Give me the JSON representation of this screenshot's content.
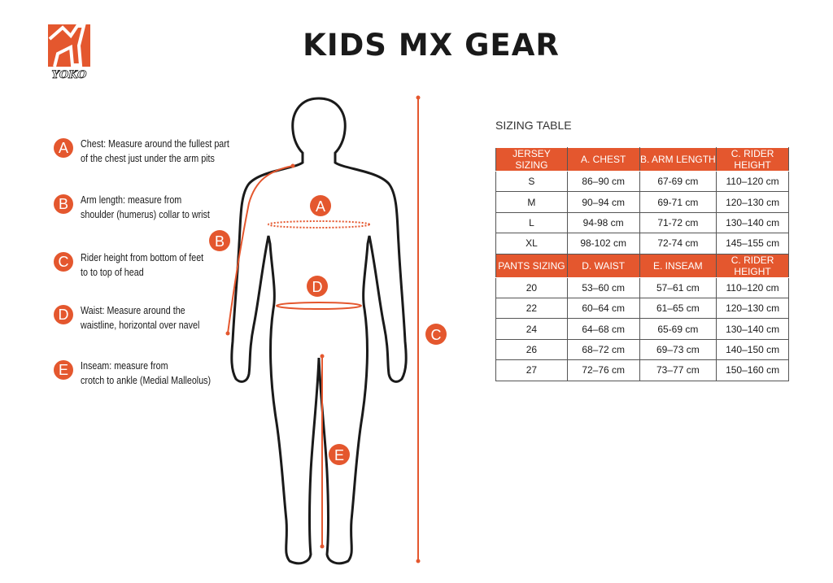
{
  "header": {
    "title": "KIDS MX GEAR",
    "logo_text": "YOKO"
  },
  "colors": {
    "accent": "#e4572e",
    "text": "#1a1a1a"
  },
  "legend": [
    {
      "letter": "A",
      "lines": [
        "Chest: Measure around  the fullest part",
        "of the chest just under the arm pits"
      ]
    },
    {
      "letter": "B",
      "lines": [
        "Arm length: measure from",
        "shoulder (humerus) collar to wrist"
      ]
    },
    {
      "letter": "C",
      "lines": [
        "Rider height from bottom of feet",
        "to to top of head"
      ]
    },
    {
      "letter": "D",
      "lines": [
        "Waist: Measure around the",
        "waistline, horizontal over navel"
      ]
    },
    {
      "letter": "E",
      "lines": [
        "Inseam: measure from",
        "crotch to ankle (Medial Malleolus)"
      ]
    }
  ],
  "figure": {
    "labels": [
      "A",
      "B",
      "C",
      "D",
      "E"
    ]
  },
  "table": {
    "label": "SIZING TABLE",
    "jersey_header": [
      "JERSEY SIZING",
      "A. CHEST",
      "B. ARM LENGTH",
      "C. RIDER HEIGHT"
    ],
    "jersey_rows": [
      [
        "S",
        "86–90 cm",
        "67-69 cm",
        "110–120 cm"
      ],
      [
        "M",
        "90–94 cm",
        "69-71 cm",
        "120–130 cm"
      ],
      [
        "L",
        "94-98 cm",
        "71-72 cm",
        "130–140 cm"
      ],
      [
        "XL",
        "98-102 cm",
        "72-74 cm",
        "145–155 cm"
      ]
    ],
    "pants_header": [
      "PANTS SIZING",
      "D. WAIST",
      "E. INSEAM",
      "C. RIDER HEIGHT"
    ],
    "pants_rows": [
      [
        "20",
        "53–60 cm",
        "57–61 cm",
        "110–120 cm"
      ],
      [
        "22",
        "60–64 cm",
        "61–65 cm",
        "120–130 cm"
      ],
      [
        "24",
        "64–68 cm",
        "65-69 cm",
        "130–140 cm"
      ],
      [
        "26",
        "68–72 cm",
        "69–73 cm",
        "140–150 cm"
      ],
      [
        "27",
        "72–76 cm",
        "73–77 cm",
        "150–160 cm"
      ]
    ]
  }
}
